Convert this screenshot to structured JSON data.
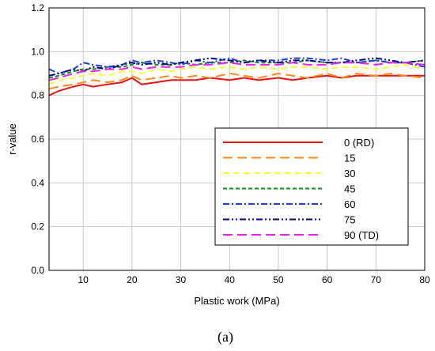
{
  "chart_data": {
    "type": "line",
    "title": "",
    "xlabel": "Plastic work (MPa)",
    "ylabel": "r-value",
    "xlim": [
      3,
      80
    ],
    "ylim": [
      0,
      1.2
    ],
    "xticks": [
      10,
      20,
      30,
      40,
      50,
      60,
      70,
      80
    ],
    "yticks": [
      0.0,
      0.2,
      0.4,
      0.6,
      0.8,
      1.0,
      1.2
    ],
    "grid": true,
    "legend_position": "center-right",
    "x": [
      3,
      5,
      8,
      10,
      12,
      15,
      18,
      20,
      22,
      25,
      28,
      30,
      33,
      36,
      40,
      43,
      46,
      50,
      53,
      56,
      60,
      63,
      66,
      70,
      73,
      76,
      80
    ],
    "series": [
      {
        "name": "0 (RD)",
        "color": "#ee1111",
        "dash": "solid",
        "values": [
          0.8,
          0.82,
          0.84,
          0.85,
          0.84,
          0.85,
          0.86,
          0.88,
          0.85,
          0.86,
          0.87,
          0.87,
          0.87,
          0.88,
          0.87,
          0.88,
          0.87,
          0.88,
          0.87,
          0.88,
          0.89,
          0.88,
          0.89,
          0.89,
          0.89,
          0.89,
          0.89
        ]
      },
      {
        "name": "15",
        "color": "#ff8c1a",
        "dash": "long",
        "values": [
          0.83,
          0.84,
          0.85,
          0.86,
          0.87,
          0.86,
          0.87,
          0.89,
          0.87,
          0.88,
          0.89,
          0.88,
          0.89,
          0.88,
          0.9,
          0.89,
          0.88,
          0.9,
          0.89,
          0.88,
          0.9,
          0.88,
          0.9,
          0.89,
          0.9,
          0.89,
          0.88
        ]
      },
      {
        "name": "30",
        "color": "#ffff33",
        "dash": "medium",
        "values": [
          0.85,
          0.87,
          0.88,
          0.89,
          0.9,
          0.89,
          0.91,
          0.91,
          0.9,
          0.92,
          0.91,
          0.92,
          0.93,
          0.92,
          0.93,
          0.92,
          0.93,
          0.92,
          0.93,
          0.93,
          0.92,
          0.93,
          0.93,
          0.92,
          0.93,
          0.94,
          0.92
        ]
      },
      {
        "name": "45",
        "color": "#11881a",
        "dash": "short",
        "values": [
          0.88,
          0.89,
          0.91,
          0.92,
          0.92,
          0.93,
          0.93,
          0.94,
          0.95,
          0.94,
          0.94,
          0.95,
          0.94,
          0.95,
          0.95,
          0.96,
          0.95,
          0.95,
          0.95,
          0.96,
          0.95,
          0.95,
          0.95,
          0.96,
          0.95,
          0.95,
          0.96
        ]
      },
      {
        "name": "60",
        "color": "#1a3ee0",
        "dash": "dashdot",
        "values": [
          0.92,
          0.9,
          0.92,
          0.95,
          0.94,
          0.93,
          0.94,
          0.96,
          0.95,
          0.96,
          0.95,
          0.94,
          0.96,
          0.95,
          0.97,
          0.95,
          0.96,
          0.96,
          0.97,
          0.97,
          0.96,
          0.97,
          0.95,
          0.96,
          0.95,
          0.95,
          0.93
        ]
      },
      {
        "name": "75",
        "color": "#000080",
        "dash": "dashdotdot",
        "values": [
          0.89,
          0.9,
          0.92,
          0.91,
          0.93,
          0.92,
          0.94,
          0.95,
          0.94,
          0.95,
          0.94,
          0.95,
          0.96,
          0.97,
          0.96,
          0.95,
          0.96,
          0.95,
          0.96,
          0.96,
          0.95,
          0.95,
          0.96,
          0.97,
          0.96,
          0.95,
          0.96
        ]
      },
      {
        "name": "90 (TD)",
        "color": "#ee22ee",
        "dash": "long",
        "values": [
          0.87,
          0.88,
          0.9,
          0.91,
          0.91,
          0.92,
          0.92,
          0.93,
          0.92,
          0.93,
          0.93,
          0.93,
          0.94,
          0.94,
          0.95,
          0.94,
          0.94,
          0.94,
          0.95,
          0.94,
          0.94,
          0.95,
          0.95,
          0.94,
          0.95,
          0.95,
          0.94
        ]
      }
    ]
  },
  "caption": "(a)"
}
